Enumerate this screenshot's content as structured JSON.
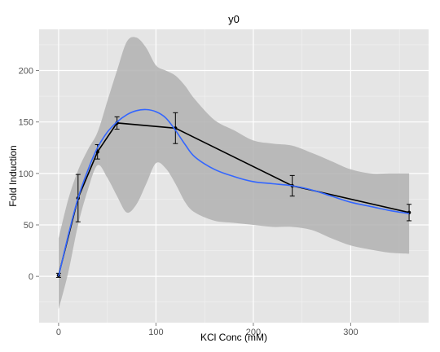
{
  "chart_data": {
    "type": "line",
    "title": "y0",
    "xlabel": "KCl Conc (mM)",
    "ylabel": "Fold Induction",
    "xlim": [
      -20,
      380
    ],
    "ylim": [
      -45,
      240
    ],
    "x_ticks": [
      0,
      100,
      200,
      300
    ],
    "x_tick_labels": [
      "0",
      "100",
      "200",
      "300"
    ],
    "y_ticks": [
      0,
      50,
      100,
      150,
      200
    ],
    "y_tick_labels": [
      "0",
      "50",
      "100",
      "150",
      "200"
    ],
    "grid": true,
    "legend": "none",
    "series": [
      {
        "style": "observed",
        "x": [
          0,
          20,
          40,
          60,
          120,
          240,
          360
        ],
        "y": [
          1,
          76,
          121,
          149,
          144,
          88,
          62
        ],
        "error": [
          2,
          23,
          7,
          6,
          15,
          10,
          8
        ]
      },
      {
        "style": "smooth-fit",
        "x": [
          0,
          10,
          20,
          30,
          40,
          50,
          60,
          70,
          80,
          90,
          100,
          110,
          120,
          130,
          140,
          160,
          180,
          200,
          220,
          240,
          260,
          280,
          300,
          320,
          340,
          360
        ],
        "y": [
          0,
          40,
          76,
          103,
          125,
          140,
          150,
          157,
          161,
          162,
          160,
          154,
          142,
          128,
          116,
          104,
          97,
          92,
          90,
          88,
          84,
          78,
          72,
          68,
          64,
          61
        ]
      },
      {
        "style": "confidence-band",
        "x": [
          0,
          10,
          20,
          30,
          40,
          50,
          60,
          70,
          80,
          90,
          100,
          110,
          120,
          130,
          140,
          160,
          180,
          200,
          220,
          240,
          260,
          280,
          300,
          320,
          340,
          360
        ],
        "lower": [
          -32,
          4,
          50,
          84,
          108,
          96,
          78,
          62,
          70,
          90,
          110,
          105,
          90,
          72,
          62,
          54,
          52,
          50,
          48,
          48,
          45,
          37,
          30,
          26,
          23,
          22
        ],
        "upper": [
          37,
          75,
          103,
          123,
          140,
          170,
          200,
          228,
          232,
          222,
          205,
          200,
          195,
          185,
          172,
          152,
          142,
          132,
          129,
          127,
          120,
          112,
          104,
          100,
          100,
          100
        ]
      }
    ],
    "colors": {
      "panel": "#e5e5e5",
      "grid": "#ffffff",
      "band": "#b2b2b2",
      "observed": "#000000",
      "fit": "#3366ff"
    }
  }
}
